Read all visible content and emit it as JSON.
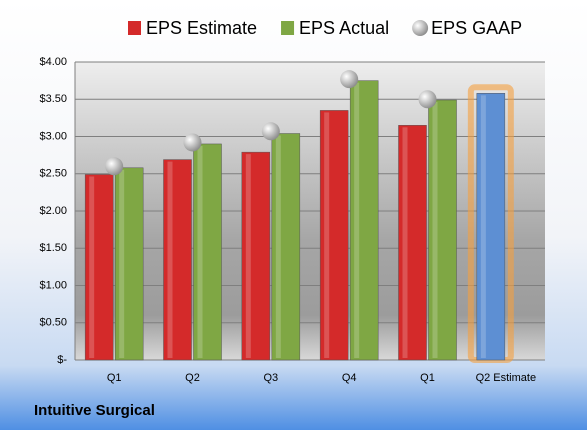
{
  "chart_data": {
    "type": "bar",
    "title": "Intuitive Surgical",
    "categories": [
      "Q1",
      "Q2",
      "Q3",
      "Q4",
      "Q1",
      "Q2 Estimate"
    ],
    "series": [
      {
        "name": "EPS Estimate",
        "color": "#d42a2a",
        "values": [
          2.49,
          2.69,
          2.79,
          3.35,
          3.15,
          3.58
        ]
      },
      {
        "name": "EPS Actual",
        "color": "#7fa744",
        "values": [
          2.58,
          2.9,
          3.04,
          3.75,
          3.49,
          null
        ]
      },
      {
        "name": "EPS GAAP",
        "color": "#b8b8b8",
        "marker": "sphere",
        "values": [
          2.6,
          2.92,
          3.07,
          3.77,
          3.5,
          null
        ]
      }
    ],
    "highlight_color": "#5d8fd3",
    "ylim": [
      0,
      4
    ],
    "yticks": [
      {
        "value": 0,
        "label": "$-"
      },
      {
        "value": 0.5,
        "label": "$0.50"
      },
      {
        "value": 1,
        "label": "$1.00"
      },
      {
        "value": 1.5,
        "label": "$1.50"
      },
      {
        "value": 2,
        "label": "$2.00"
      },
      {
        "value": 2.5,
        "label": "$2.50"
      },
      {
        "value": 3,
        "label": "$3.00"
      },
      {
        "value": 3.5,
        "label": "$3.50"
      },
      {
        "value": 4,
        "label": "$4.00"
      }
    ],
    "grid": true,
    "legend": "top"
  }
}
